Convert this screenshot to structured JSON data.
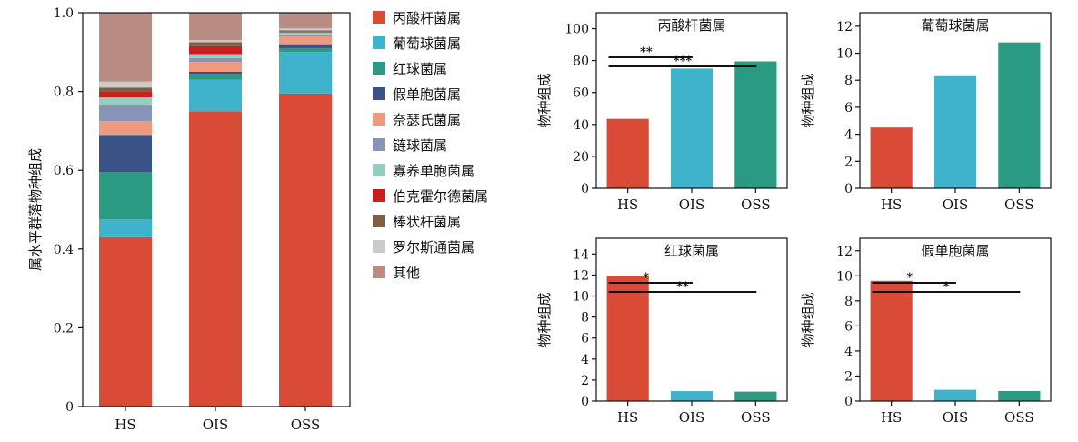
{
  "colors": {
    "丙酸杆菌属": "#d94b37",
    "葡萄球菌属": "#3fb2cc",
    "红球菌属": "#2a9a82",
    "假单胞菌属": "#3a5285",
    "奈瑟氏菌属": "#ec9a80",
    "链球菌属": "#8894b5",
    "寡养单胞菌属": "#93cec0",
    "伯克霍尔德菌属": "#cc1e22",
    "棒状杆菌属": "#7e5f44",
    "罗尔斯通菌属": "#cbcbcb",
    "其他": "#b98d84"
  },
  "chart_data": [
    {
      "type": "bar",
      "stacked": true,
      "categories": [
        "HS",
        "OIS",
        "OSS"
      ],
      "ylabel": "属水平群落物种组成",
      "ylim": [
        0,
        1.0
      ],
      "yticks": [
        "0",
        "0.2",
        "0.4",
        "0.6",
        "0.8",
        "1.0"
      ],
      "legend_position": "right",
      "series": [
        {
          "name": "丙酸杆菌属",
          "values": [
            0.43,
            0.75,
            0.795
          ]
        },
        {
          "name": "葡萄球菌属",
          "values": [
            0.045,
            0.08,
            0.105
          ]
        },
        {
          "name": "红球菌属",
          "values": [
            0.12,
            0.015,
            0.01
          ]
        },
        {
          "name": "假单胞菌属",
          "values": [
            0.095,
            0.005,
            0.01
          ]
        },
        {
          "name": "奈瑟氏菌属",
          "values": [
            0.035,
            0.025,
            0.02
          ]
        },
        {
          "name": "链球菌属",
          "values": [
            0.04,
            0.01,
            0.005
          ]
        },
        {
          "name": "寡养单胞菌属",
          "values": [
            0.02,
            0.01,
            0.005
          ]
        },
        {
          "name": "伯克霍尔德菌属",
          "values": [
            0.015,
            0.02,
            0.002
          ]
        },
        {
          "name": "棒状杆菌属",
          "values": [
            0.01,
            0.01,
            0.003
          ]
        },
        {
          "name": "罗尔斯通菌属",
          "values": [
            0.015,
            0.005,
            0.005
          ]
        },
        {
          "name": "其他",
          "values": [
            0.175,
            0.07,
            0.04
          ]
        }
      ]
    },
    {
      "type": "bar",
      "title": "丙酸杆菌属",
      "ylabel": "物种组成",
      "categories": [
        "HS",
        "OIS",
        "OSS"
      ],
      "values": [
        43.5,
        75,
        79.5
      ],
      "ylim": [
        0,
        110
      ],
      "yticks": [
        0,
        20,
        40,
        60,
        80,
        100
      ],
      "significance": [
        {
          "from": 0,
          "to": 1,
          "label": "**"
        },
        {
          "from": 0,
          "to": 2,
          "label": "***"
        }
      ]
    },
    {
      "type": "bar",
      "title": "葡萄球菌属",
      "ylabel": "物种组成",
      "categories": [
        "HS",
        "OIS",
        "OSS"
      ],
      "values": [
        4.5,
        8.3,
        10.8
      ],
      "ylim": [
        0,
        13
      ],
      "yticks": [
        0,
        2,
        4,
        6,
        8,
        10,
        12
      ],
      "significance": []
    },
    {
      "type": "bar",
      "title": "红球菌属",
      "ylabel": "物种组成",
      "categories": [
        "HS",
        "OIS",
        "OSS"
      ],
      "values": [
        11.9,
        0.95,
        0.9
      ],
      "ylim": [
        0,
        15.5
      ],
      "yticks": [
        0,
        2,
        4,
        6,
        8,
        10,
        12,
        14
      ],
      "significance": [
        {
          "from": 0,
          "to": 1,
          "label": "*"
        },
        {
          "from": 0,
          "to": 2,
          "label": "**"
        }
      ]
    },
    {
      "type": "bar",
      "title": "假单胞菌属",
      "ylabel": "物种组成",
      "categories": [
        "HS",
        "OIS",
        "OSS"
      ],
      "values": [
        9.6,
        0.9,
        0.8
      ],
      "ylim": [
        0,
        13
      ],
      "yticks": [
        0,
        2,
        4,
        6,
        8,
        10,
        12
      ],
      "significance": [
        {
          "from": 0,
          "to": 1,
          "label": "*"
        },
        {
          "from": 0,
          "to": 2,
          "label": "*"
        }
      ]
    }
  ]
}
